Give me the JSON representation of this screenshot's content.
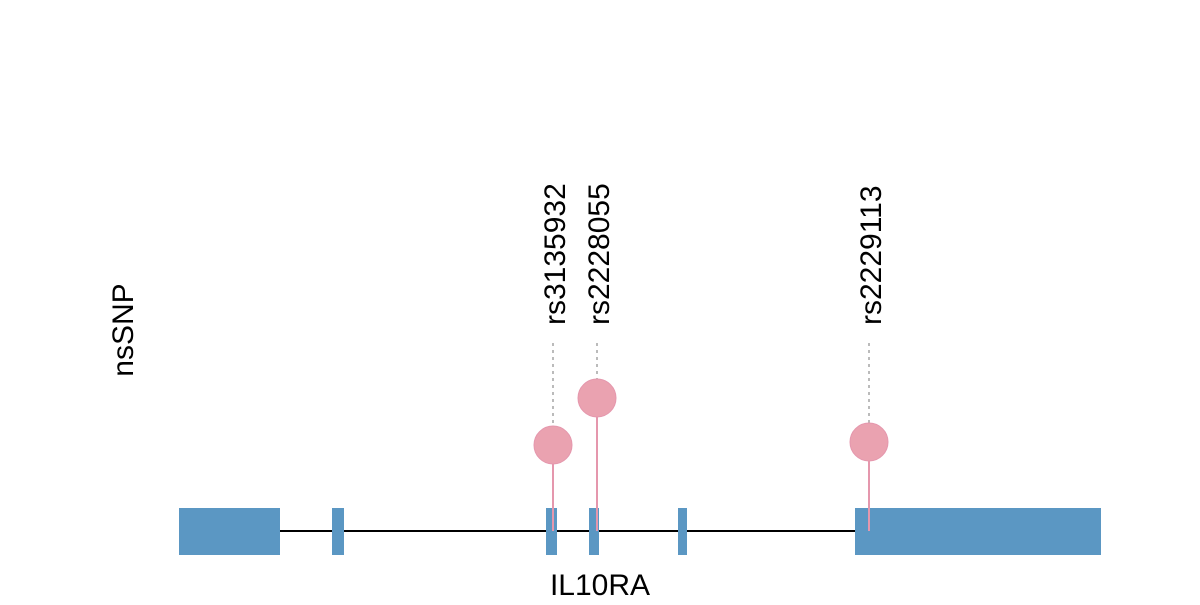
{
  "track_label": "nsSNP",
  "gene": {
    "name": "IL10RA"
  },
  "snps": [
    {
      "label": "rs3135932"
    },
    {
      "label": "rs2228055"
    },
    {
      "label": "rs2229113"
    }
  ]
}
